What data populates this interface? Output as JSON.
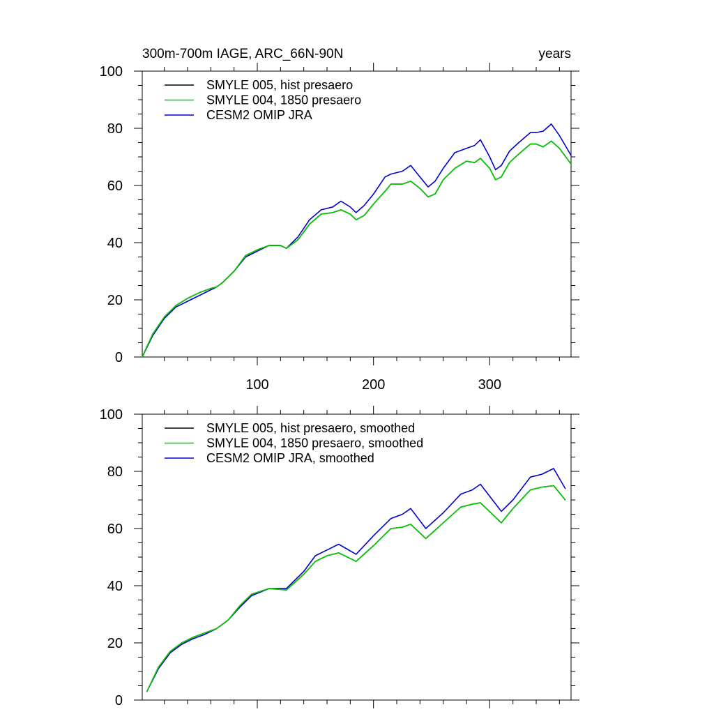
{
  "chart_data": [
    {
      "type": "line",
      "title": "300m-700m IAGE, ARC_66N-90N",
      "units_label": "years",
      "xlabel": "",
      "ylabel": "",
      "xlim": [
        1,
        370
      ],
      "ylim": [
        0,
        100
      ],
      "x_ticks": [
        100,
        200,
        300
      ],
      "y_ticks": [
        0,
        20,
        40,
        60,
        80,
        100
      ],
      "x_tick_labels_shown": true,
      "legend_position": "top-left",
      "grid": false,
      "series": [
        {
          "name": "SMYLE 005, hist presaero",
          "color": "#000000",
          "x": [
            1,
            10,
            20,
            30,
            40,
            50,
            60,
            65,
            70,
            80,
            90,
            100,
            110,
            120,
            125,
            135,
            145,
            155,
            165,
            172,
            180,
            185,
            192,
            200,
            210,
            215,
            225,
            232,
            240,
            247,
            253,
            260,
            270,
            280,
            287,
            292,
            300,
            305,
            310,
            317,
            325,
            335,
            340,
            346,
            353,
            360,
            370
          ],
          "values": [
            0,
            8,
            14,
            18,
            20.5,
            22.5,
            24,
            24.5,
            26,
            30,
            35.5,
            37.5,
            39,
            39,
            38,
            41,
            46.5,
            50,
            50.5,
            51.5,
            50,
            48,
            49.5,
            53.5,
            58,
            60.5,
            60.5,
            61.5,
            59,
            56,
            57,
            62,
            66,
            68.5,
            68,
            69.5,
            66,
            62,
            63,
            68,
            71,
            74.5,
            74.5,
            73.5,
            75.5,
            73,
            67.5
          ]
        },
        {
          "name": "SMYLE 004, 1850 presaero",
          "color": "#00cc00",
          "x": [
            1,
            10,
            20,
            30,
            40,
            50,
            60,
            65,
            70,
            80,
            90,
            100,
            110,
            120,
            125,
            135,
            145,
            155,
            165,
            172,
            180,
            185,
            192,
            200,
            210,
            215,
            225,
            232,
            240,
            247,
            253,
            260,
            270,
            280,
            287,
            292,
            300,
            305,
            310,
            317,
            325,
            335,
            340,
            346,
            353,
            360,
            370
          ],
          "values": [
            0,
            8,
            14,
            18,
            20.5,
            22.5,
            24,
            24.5,
            26,
            30,
            35.5,
            37.5,
            39,
            39,
            38,
            41,
            46.5,
            50,
            50.5,
            51.5,
            50,
            48,
            49.5,
            53.5,
            58,
            60.5,
            60.5,
            61.5,
            59,
            56,
            57,
            62,
            66,
            68.5,
            68,
            69.5,
            66,
            62,
            63,
            68,
            71,
            74.5,
            74.5,
            73.5,
            75.5,
            73,
            67.5
          ]
        },
        {
          "name": "CESM2 OMIP JRA",
          "color": "#0000cc",
          "x": [
            1,
            10,
            20,
            30,
            40,
            50,
            60,
            65,
            70,
            80,
            90,
            100,
            110,
            120,
            125,
            135,
            145,
            155,
            165,
            172,
            180,
            185,
            192,
            200,
            210,
            215,
            225,
            232,
            240,
            247,
            253,
            260,
            270,
            280,
            287,
            292,
            300,
            305,
            310,
            317,
            325,
            335,
            340,
            346,
            353,
            360,
            370
          ],
          "values": [
            0,
            7.5,
            13.5,
            17.5,
            19.5,
            21.5,
            23.5,
            24.5,
            26,
            30,
            35,
            37,
            39,
            39,
            38,
            42,
            48,
            51.5,
            52.5,
            54.5,
            52.5,
            50.5,
            53,
            57,
            63,
            64,
            65,
            67,
            63,
            59.5,
            61.5,
            66,
            71.5,
            73,
            74,
            76,
            70,
            65.5,
            67,
            72,
            75,
            78.5,
            78.5,
            79,
            81.5,
            77.5,
            70.5
          ]
        }
      ]
    },
    {
      "type": "line",
      "title": "",
      "xlabel": "",
      "ylabel": "",
      "xlim": [
        1,
        370
      ],
      "ylim": [
        0,
        100
      ],
      "x_ticks": [
        100,
        200,
        300
      ],
      "y_ticks": [
        0,
        20,
        40,
        60,
        80,
        100
      ],
      "x_tick_labels_shown": false,
      "legend_position": "top-left",
      "grid": false,
      "series": [
        {
          "name": "SMYLE 005, hist presaero, smoothed",
          "color": "#000000",
          "x": [
            5,
            15,
            25,
            35,
            45,
            55,
            65,
            75,
            85,
            95,
            110,
            125,
            140,
            150,
            160,
            170,
            185,
            200,
            215,
            225,
            232,
            245,
            260,
            275,
            285,
            292,
            310,
            320,
            335,
            345,
            355,
            365
          ],
          "values": [
            3,
            11.5,
            17,
            20,
            22,
            23.5,
            25,
            28,
            33,
            37,
            39,
            38.5,
            44,
            48.5,
            50.5,
            51.5,
            48.5,
            54,
            60,
            60.5,
            61.5,
            56.5,
            62,
            67.5,
            68.5,
            69,
            62,
            67,
            73.5,
            74.5,
            75,
            70
          ]
        },
        {
          "name": "SMYLE 004, 1850 presaero, smoothed",
          "color": "#00cc00",
          "x": [
            5,
            15,
            25,
            35,
            45,
            55,
            65,
            75,
            85,
            95,
            110,
            125,
            140,
            150,
            160,
            170,
            185,
            200,
            215,
            225,
            232,
            245,
            260,
            275,
            285,
            292,
            310,
            320,
            335,
            345,
            355,
            365
          ],
          "values": [
            3,
            11.5,
            17,
            20,
            22,
            23.5,
            25,
            28,
            33,
            37,
            39,
            38.5,
            44,
            48.5,
            50.5,
            51.5,
            48.5,
            54,
            60,
            60.5,
            61.5,
            56.5,
            62,
            67.5,
            68.5,
            69,
            62,
            67,
            73.5,
            74.5,
            75,
            70
          ]
        },
        {
          "name": "CESM2 OMIP JRA, smoothed",
          "color": "#0000cc",
          "x": [
            5,
            15,
            25,
            35,
            45,
            55,
            65,
            75,
            85,
            95,
            110,
            125,
            140,
            150,
            160,
            170,
            185,
            200,
            215,
            225,
            232,
            245,
            260,
            275,
            285,
            292,
            310,
            320,
            335,
            345,
            355,
            365
          ],
          "values": [
            3,
            11,
            16.5,
            19.5,
            21.5,
            23,
            25,
            28,
            32.5,
            36.5,
            39,
            39,
            45,
            50.5,
            52.5,
            54.5,
            51,
            57.5,
            63.5,
            65,
            67,
            60,
            65.5,
            72,
            73.5,
            75.5,
            66,
            70,
            78,
            79,
            81,
            74
          ]
        }
      ]
    }
  ]
}
